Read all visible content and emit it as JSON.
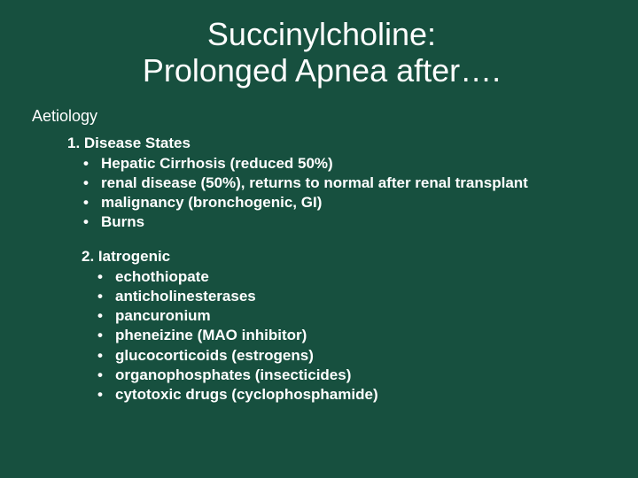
{
  "colors": {
    "background": "#17503f",
    "text": "#ffffff"
  },
  "title": {
    "line1": "Succinylcholine:",
    "line2": "Prolonged Apnea after…."
  },
  "sectionHeading": "Aetiology",
  "groups": [
    {
      "title": "1. Disease States",
      "items": [
        "Hepatic Cirrhosis (reduced 50%)",
        "renal disease (50%), returns to normal after renal transplant",
        "malignancy (bronchogenic, GI)",
        "Burns"
      ]
    },
    {
      "title": "2. Iatrogenic",
      "items": [
        "echothiopate",
        "anticholinesterases",
        "pancuronium",
        "pheneizine (MAO inhibitor)",
        "glucocorticoids (estrogens)",
        "organophosphates (insecticides)",
        "cytotoxic drugs (cyclophosphamide)"
      ]
    }
  ]
}
